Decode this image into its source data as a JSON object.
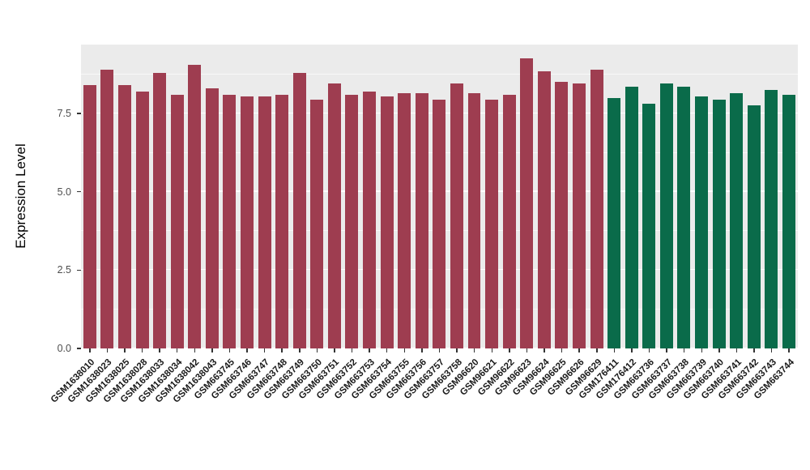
{
  "chart_data": {
    "type": "bar",
    "title": "",
    "xlabel": "",
    "ylabel": "Expression Level",
    "ylim": [
      0,
      9.7
    ],
    "yticks": [
      0,
      2.5,
      5,
      7.5
    ],
    "ytick_labels": [
      "0.0",
      "2.5",
      "5.0",
      "7.5"
    ],
    "grid": true,
    "legend": "none",
    "panel_bg": "#EBEBEB",
    "grid_color": "#FFFFFF",
    "group_colors": {
      "group1": "#9E3D50",
      "group2": "#0A6B4A"
    },
    "categories": [
      "GSM1638010",
      "GSM1638023",
      "GSM1638025",
      "GSM1638028",
      "GSM1638033",
      "GSM1638034",
      "GSM1638042",
      "GSM1638043",
      "GSM663745",
      "GSM663746",
      "GSM663747",
      "GSM663748",
      "GSM663749",
      "GSM663750",
      "GSM663751",
      "GSM663752",
      "GSM663753",
      "GSM663754",
      "GSM663755",
      "GSM663756",
      "GSM663757",
      "GSM663758",
      "GSM96620",
      "GSM96621",
      "GSM96622",
      "GSM96623",
      "GSM96624",
      "GSM96625",
      "GSM96626",
      "GSM96629",
      "GSM176411",
      "GSM176412",
      "GSM663736",
      "GSM663737",
      "GSM663738",
      "GSM663739",
      "GSM663740",
      "GSM663741",
      "GSM663742",
      "GSM663743",
      "GSM663744"
    ],
    "values": [
      8.4,
      8.9,
      8.4,
      8.2,
      8.8,
      8.1,
      9.05,
      8.3,
      8.1,
      8.05,
      8.05,
      8.1,
      8.8,
      7.95,
      8.45,
      8.1,
      8.2,
      8.05,
      8.15,
      8.15,
      7.95,
      8.45,
      8.15,
      7.95,
      8.1,
      9.25,
      8.85,
      8.5,
      8.45,
      8.9,
      8.0,
      8.35,
      7.8,
      8.45,
      8.35,
      8.05,
      7.95,
      8.15,
      7.75,
      8.25,
      8.1
    ],
    "bar_groups": [
      "group1",
      "group1",
      "group1",
      "group1",
      "group1",
      "group1",
      "group1",
      "group1",
      "group1",
      "group1",
      "group1",
      "group1",
      "group1",
      "group1",
      "group1",
      "group1",
      "group1",
      "group1",
      "group1",
      "group1",
      "group1",
      "group1",
      "group1",
      "group1",
      "group1",
      "group1",
      "group1",
      "group1",
      "group1",
      "group1",
      "group2",
      "group2",
      "group2",
      "group2",
      "group2",
      "group2",
      "group2",
      "group2",
      "group2",
      "group2",
      "group2"
    ]
  }
}
